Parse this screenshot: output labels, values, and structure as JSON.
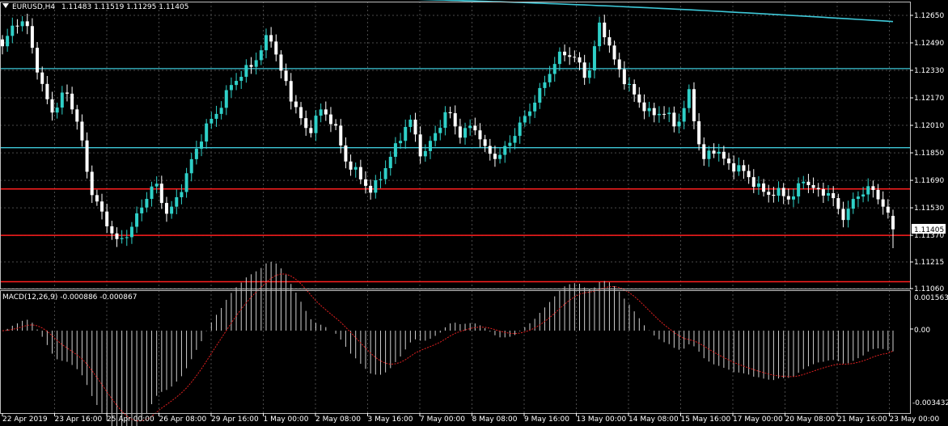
{
  "window": {
    "symbol_label": "EURUSD,H4",
    "ohlc_label": "1.11483 1.11519 1.11295 1.11405"
  },
  "price_panel": {
    "y_ticks": [
      "1.12650",
      "1.12490",
      "1.12330",
      "1.12170",
      "1.12010",
      "1.11850",
      "1.11690",
      "1.11530",
      "1.11370",
      "1.11215",
      "1.11060"
    ],
    "current_price_label": "1.11405",
    "ma_color": "#3ec8d8",
    "level_color": "#ff1e1e",
    "grid_color": "#4a4a4a"
  },
  "macd_panel": {
    "label": "MACD(12,26,9) -0.000886 -0.000867",
    "y_ticks": [
      "0.001563",
      "0.00",
      "-0.003432"
    ]
  },
  "x_axis": {
    "ticks": [
      "22 Apr 2019",
      "23 Apr 16:00",
      "25 Apr 00:00",
      "26 Apr 08:00",
      "29 Apr 16:00",
      "1 May 00:00",
      "2 May 08:00",
      "3 May 16:00",
      "7 May 00:00",
      "8 May 08:00",
      "9 May 16:00",
      "13 May 00:00",
      "14 May 08:00",
      "15 May 16:00",
      "17 May 00:00",
      "20 May 08:00",
      "21 May 16:00",
      "23 May 00:00"
    ]
  },
  "chart_data": {
    "type": "candlestick",
    "symbol": "EURUSD",
    "timeframe": "H4",
    "price_range": [
      1.1106,
      1.1273
    ],
    "horizontal_levels": {
      "cyan": [
        1.1234,
        1.1188
      ],
      "red": [
        1.1164,
        1.1137,
        1.111
      ]
    },
    "macd": {
      "fast": 12,
      "slow": 26,
      "signal": 9,
      "value": -0.000886,
      "signal_value": -0.000867,
      "range": [
        -0.003432,
        0.001563
      ]
    },
    "last": {
      "open": 1.11483,
      "high": 1.11519,
      "low": 1.11295,
      "close": 1.11405
    },
    "close_path": [
      1.1246,
      1.1262,
      1.1258,
      1.1225,
      1.1208,
      1.1222,
      1.12,
      1.1162,
      1.1147,
      1.1133,
      1.1139,
      1.1155,
      1.1168,
      1.1148,
      1.1163,
      1.1183,
      1.12,
      1.121,
      1.1225,
      1.1232,
      1.124,
      1.1255,
      1.123,
      1.1212,
      1.1196,
      1.121,
      1.1203,
      1.118,
      1.1172,
      1.1162,
      1.1175,
      1.119,
      1.1205,
      1.1182,
      1.1196,
      1.121,
      1.1195,
      1.1202,
      1.1186,
      1.1182,
      1.1193,
      1.1205,
      1.1217,
      1.1232,
      1.1244,
      1.124,
      1.1228,
      1.1262,
      1.124,
      1.1226,
      1.1215,
      1.1207,
      1.1209,
      1.12,
      1.122,
      1.118,
      1.1188,
      1.1178,
      1.1176,
      1.1168,
      1.1161,
      1.1162,
      1.1158,
      1.117,
      1.1162,
      1.1162,
      1.1147,
      1.1158,
      1.1165,
      1.1158,
      1.1143
    ]
  }
}
